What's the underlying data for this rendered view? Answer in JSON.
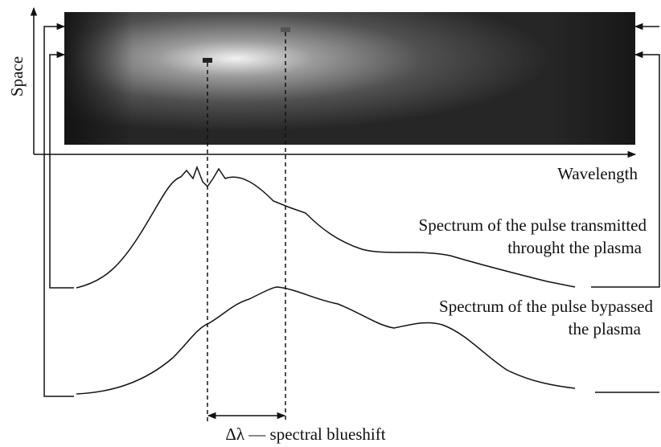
{
  "labels": {
    "space": "Space",
    "wavelength": "Wavelength",
    "transmitted": [
      "Spectrum of the pulse transmitted",
      "throught the plasma"
    ],
    "bypassed": [
      "Spectrum of the pulse bypassed",
      "the plasma"
    ],
    "shift": "Δλ — spectral blueshift"
  }
}
